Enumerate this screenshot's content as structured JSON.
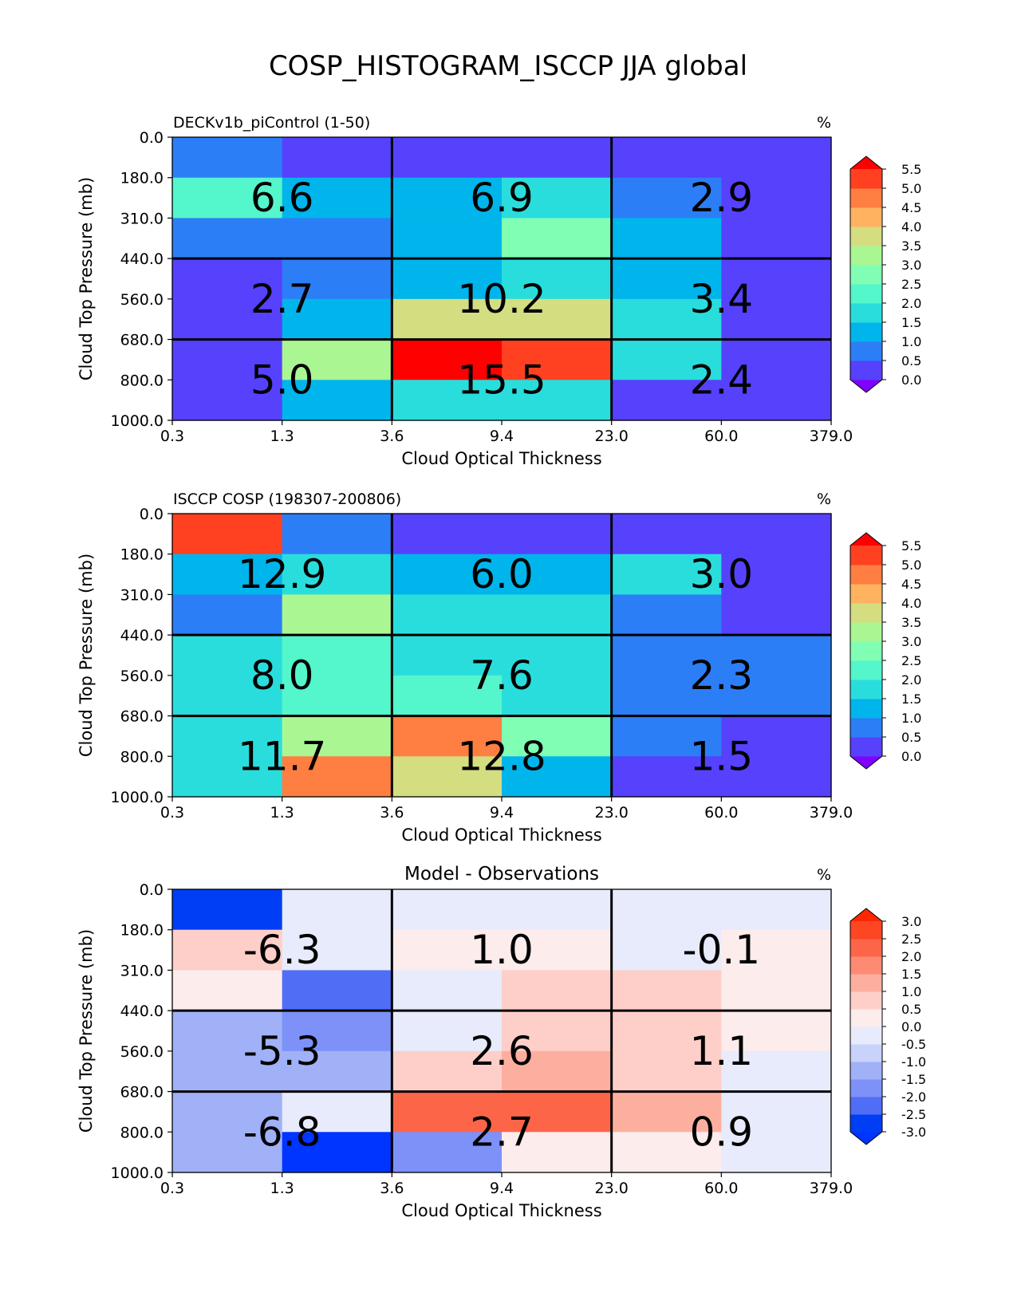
{
  "figure": {
    "title": "COSP_HISTOGRAM_ISCCP JJA global"
  },
  "colorbars": {
    "main": {
      "colors": [
        "#8000ff",
        "#5641fd",
        "#2c7ef7",
        "#00b5eb",
        "#2adddd",
        "#54f6cb",
        "#80ffb4",
        "#aaf693",
        "#d4dd80",
        "#ffb360",
        "#ff7e41",
        "#ff4121",
        "#ff0000"
      ],
      "ticks": [
        "0.0",
        "0.5",
        "1.0",
        "1.5",
        "2.0",
        "2.5",
        "3.0",
        "3.5",
        "4.0",
        "4.5",
        "5.0",
        "5.5"
      ]
    },
    "diff": {
      "colors": [
        "#0034ff",
        "#003ef5",
        "#4f6ef5",
        "#7d91f8",
        "#a0b1f8",
        "#c8d2fb",
        "#e7ebfb",
        "#fcecec",
        "#fdcfc8",
        "#fdaf9f",
        "#fd8a73",
        "#fd6548",
        "#fd4622",
        "#ff2600"
      ],
      "ticks": [
        "-3.0",
        "-2.5",
        "-2.0",
        "-1.5",
        "-1.0",
        "-0.5",
        "0.0",
        "0.5",
        "1.0",
        "1.5",
        "2.0",
        "2.5",
        "3.0"
      ]
    }
  },
  "chart_data": [
    {
      "type": "heatmap",
      "title": "DECKv1b_piControl (1-50)",
      "title_position": "left",
      "units": "%",
      "colorbar": "main",
      "xlabel": "Cloud Optical Thickness",
      "ylabel": "Cloud Top Pressure (mb)",
      "x_ticks": [
        "0.3",
        "1.3",
        "3.6",
        "9.4",
        "23.0",
        "60.0",
        "379.0"
      ],
      "y_ticks": [
        "0.0",
        "180.0",
        "310.0",
        "440.0",
        "560.0",
        "680.0",
        "800.0",
        "1000.0"
      ],
      "cell_colors": [
        [
          2,
          1,
          1,
          1,
          1,
          1
        ],
        [
          5,
          3,
          3,
          4,
          2,
          1
        ],
        [
          2,
          2,
          3,
          6,
          3,
          1
        ],
        [
          1,
          2,
          3,
          4,
          3,
          1
        ],
        [
          1,
          3,
          8,
          8,
          4,
          1
        ],
        [
          1,
          7,
          12,
          11,
          4,
          1
        ],
        [
          1,
          3,
          4,
          4,
          1,
          1
        ]
      ],
      "group_values": [
        [
          "6.6",
          "6.9",
          "2.9"
        ],
        [
          "2.7",
          "10.2",
          "3.4"
        ],
        [
          "5.0",
          "15.5",
          "2.4"
        ]
      ]
    },
    {
      "type": "heatmap",
      "title": "ISCCP COSP (198307-200806)",
      "title_position": "left",
      "units": "%",
      "colorbar": "main",
      "xlabel": "Cloud Optical Thickness",
      "ylabel": "Cloud Top Pressure (mb)",
      "x_ticks": [
        "0.3",
        "1.3",
        "3.6",
        "9.4",
        "23.0",
        "60.0",
        "379.0"
      ],
      "y_ticks": [
        "0.0",
        "180.0",
        "310.0",
        "440.0",
        "560.0",
        "680.0",
        "800.0",
        "1000.0"
      ],
      "cell_colors": [
        [
          11,
          2,
          1,
          1,
          1,
          1
        ],
        [
          3,
          4,
          3,
          3,
          4,
          1
        ],
        [
          2,
          7,
          4,
          4,
          2,
          1
        ],
        [
          4,
          5,
          4,
          4,
          2,
          2
        ],
        [
          4,
          5,
          5,
          4,
          2,
          2
        ],
        [
          4,
          7,
          10,
          6,
          2,
          1
        ],
        [
          4,
          10,
          8,
          3,
          1,
          1
        ]
      ],
      "group_values": [
        [
          "12.9",
          "6.0",
          "3.0"
        ],
        [
          "8.0",
          "7.6",
          "2.3"
        ],
        [
          "11.7",
          "12.8",
          "1.5"
        ]
      ]
    },
    {
      "type": "heatmap",
      "title": "Model - Observations",
      "title_position": "center",
      "units": "%",
      "colorbar": "diff",
      "xlabel": "Cloud Optical Thickness",
      "ylabel": "Cloud Top Pressure (mb)",
      "x_ticks": [
        "0.3",
        "1.3",
        "3.6",
        "9.4",
        "23.0",
        "60.0",
        "379.0"
      ],
      "y_ticks": [
        "0.0",
        "180.0",
        "310.0",
        "440.0",
        "560.0",
        "680.0",
        "800.0",
        "1000.0"
      ],
      "cell_colors": [
        [
          1,
          6,
          6,
          6,
          6,
          6
        ],
        [
          8,
          6,
          7,
          7,
          6,
          7
        ],
        [
          7,
          2,
          6,
          8,
          8,
          7
        ],
        [
          4,
          3,
          6,
          8,
          8,
          7
        ],
        [
          4,
          4,
          8,
          9,
          8,
          6
        ],
        [
          4,
          6,
          11,
          11,
          9,
          6
        ],
        [
          4,
          0,
          3,
          7,
          7,
          6
        ]
      ],
      "group_values": [
        [
          "-6.3",
          "1.0",
          "-0.1"
        ],
        [
          "-5.3",
          "2.6",
          "1.1"
        ],
        [
          "-6.8",
          "2.7",
          "0.9"
        ]
      ]
    }
  ]
}
